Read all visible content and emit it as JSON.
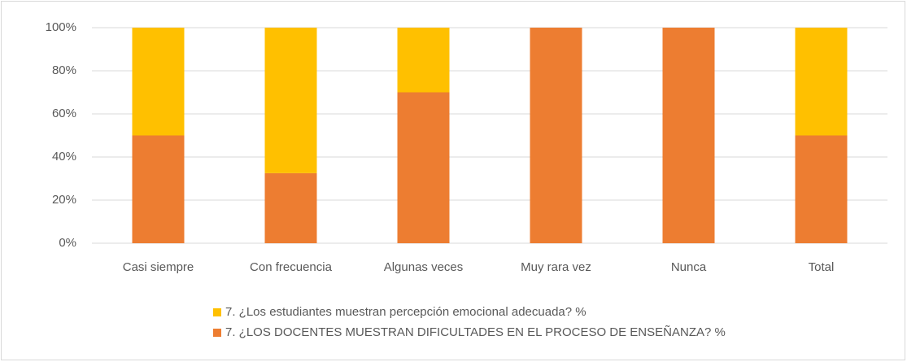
{
  "chart_data": {
    "type": "stacked_bar",
    "categories": [
      "Casi siempre",
      "Con frecuencia",
      "Algunas veces",
      "Muy rara vez",
      "Nunca",
      "Total"
    ],
    "series": [
      {
        "name": "7. ¿Los estudiantes muestran percepción emocional adecuada? %",
        "color": "#FFC000",
        "values": [
          50,
          67.5,
          30,
          0,
          0,
          50
        ]
      },
      {
        "name": "7. ¿LOS DOCENTES MUESTRAN DIFICULTADES EN EL PROCESO DE ENSEÑANZA? %",
        "color": "#ED7D31",
        "values": [
          50,
          32.5,
          70,
          100,
          100,
          50
        ]
      }
    ],
    "stack_order": "last_series_bottom",
    "ylim": [
      0,
      100
    ],
    "yticks": [
      {
        "value": 0,
        "label": "0%"
      },
      {
        "value": 20,
        "label": "20%"
      },
      {
        "value": 40,
        "label": "40%"
      },
      {
        "value": 60,
        "label": "60%"
      },
      {
        "value": 80,
        "label": "80%"
      },
      {
        "value": 100,
        "label": "100%"
      }
    ],
    "grid": true,
    "legend": "bottom"
  }
}
